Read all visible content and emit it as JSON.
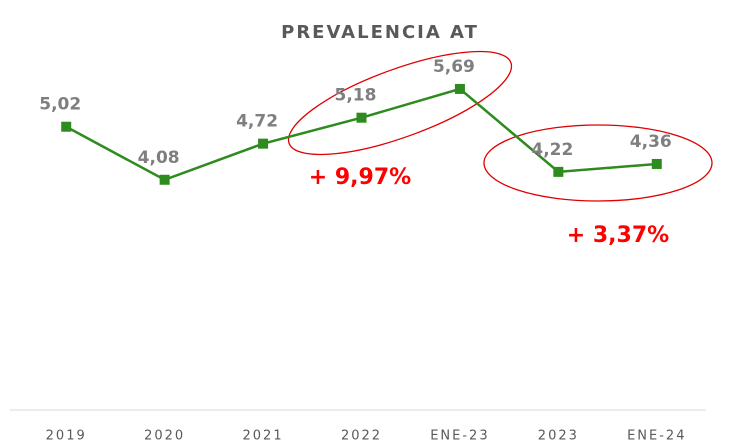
{
  "chart_data": {
    "type": "line",
    "title": "PREVALENCIA AT",
    "categories": [
      "2019",
      "2020",
      "2021",
      "2022",
      "ENE-23",
      "2023",
      "ENE-24"
    ],
    "series": [
      {
        "name": "PREVALENCIA AT",
        "color": "#2e8b1e",
        "values": [
          5.02,
          4.08,
          4.72,
          5.18,
          5.69,
          4.22,
          4.36
        ],
        "value_labels": [
          "5,02",
          "4,08",
          "4,72",
          "5,18",
          "5,69",
          "4,22",
          "4,36"
        ]
      }
    ],
    "ylim": [
      0,
      7
    ],
    "annotations": [
      "+ 9,97%",
      "+ 3,37%"
    ]
  }
}
